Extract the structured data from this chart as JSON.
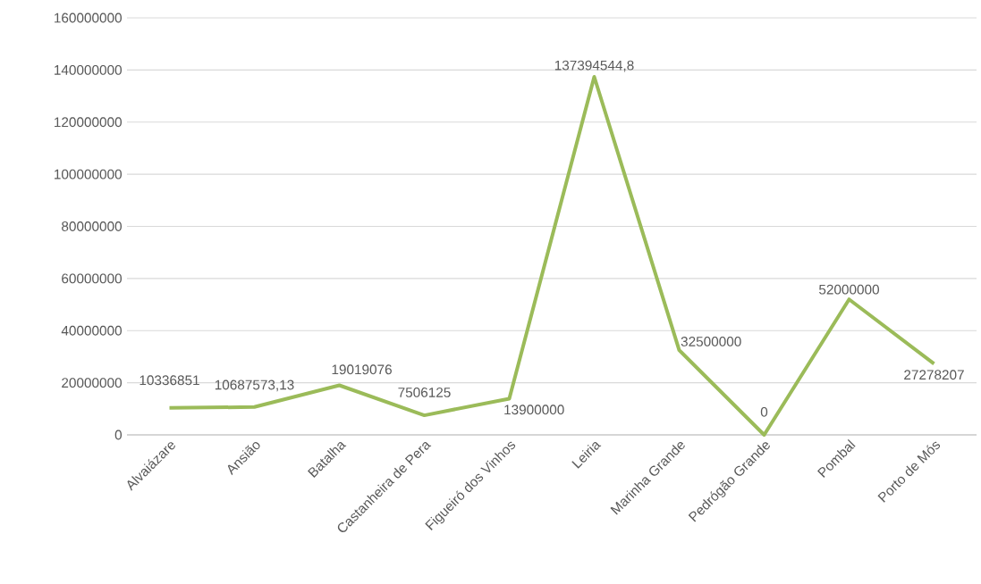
{
  "chart_data": {
    "type": "line",
    "categories": [
      "Alvaiázare",
      "Ansião",
      "Batalha",
      "Castanheira de Pera",
      "Figueiró dos Vinhos",
      "Leiria",
      "Marinha Grande",
      "Pedrógão Grande",
      "Pombal",
      "Porto de Mós"
    ],
    "series": [
      {
        "color": "#9bbb59",
        "values": [
          10336851,
          10687573.13,
          19019076,
          7506125,
          13900000,
          137394544.8,
          32500000,
          0,
          52000000,
          27278207
        ],
        "value_labels": [
          "10336851",
          "10687573,13",
          "19019076",
          "7506125",
          "13900000",
          "137394544,8",
          "32500000",
          "0",
          "52000000",
          "27278207"
        ]
      }
    ],
    "ylim": [
      0,
      160000000
    ],
    "yticks": [
      0,
      20000000,
      40000000,
      60000000,
      80000000,
      100000000,
      120000000,
      140000000,
      160000000
    ],
    "grid": "y",
    "marker": "none",
    "line_style": "solid"
  }
}
